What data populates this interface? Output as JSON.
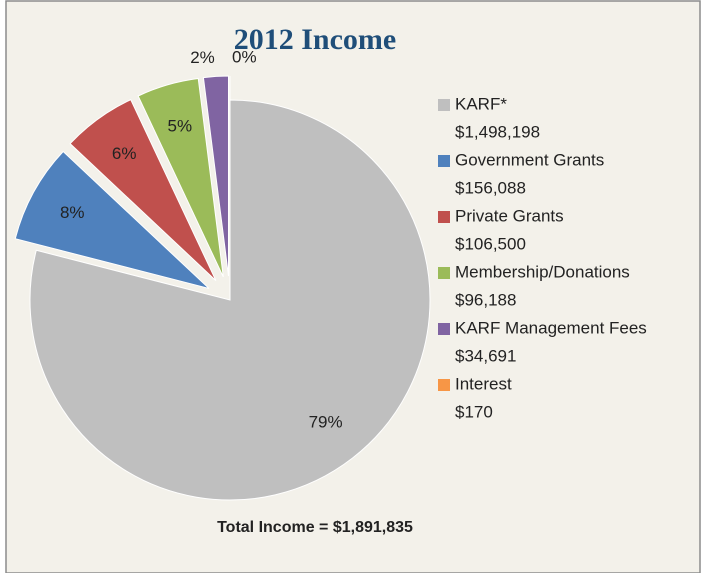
{
  "chart_data": {
    "type": "pie",
    "title": "2012 Income",
    "categories": [
      "KARF*",
      "Government Grants",
      "Private Grants",
      "Membership/Donations",
      "KARF Management Fees",
      "Interest"
    ],
    "values": [
      79,
      8,
      6,
      5,
      2,
      0
    ],
    "value_labels": [
      "79%",
      "8%",
      "6%",
      "5%",
      "2%",
      "0%"
    ],
    "amounts": [
      "$1,498,198",
      "$156,088",
      "$106,500",
      "$96,188",
      "$34,691",
      "$170"
    ],
    "colors": [
      "#bfbfbf",
      "#4f81bd",
      "#c0504d",
      "#9bbb59",
      "#8064a2",
      "#f79646"
    ],
    "exploded": [
      "Government Grants",
      "Private Grants",
      "Membership/Donations",
      "KARF Management Fees",
      "Interest"
    ],
    "legend": "right",
    "total_label": "Total Income = $1,891,835"
  }
}
